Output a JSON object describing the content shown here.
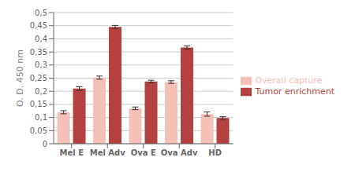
{
  "chart_data": {
    "type": "bar",
    "ylabel": "O. D. 450 nm",
    "categories": [
      "Mel E",
      "Mel Adv",
      "Ova E",
      "Ova Adv",
      "HD"
    ],
    "series": [
      {
        "name": "Overall capture",
        "color": "#f5c0b8",
        "values": [
          0.12,
          0.252,
          0.135,
          0.235,
          0.113
        ],
        "errors": [
          0.006,
          0.006,
          0.005,
          0.005,
          0.008
        ]
      },
      {
        "name": "Tumor enrichment",
        "color": "#b54040",
        "values": [
          0.21,
          0.445,
          0.237,
          0.367,
          0.098
        ],
        "errors": [
          0.007,
          0.006,
          0.005,
          0.006,
          0.005
        ]
      }
    ],
    "ylim": [
      0,
      0.5
    ],
    "yticks": [
      0,
      {
        "value": 0.05,
        "label": "0,05"
      },
      {
        "value": 0.1,
        "label": "0,1"
      },
      {
        "value": 0.15,
        "label": "0,15"
      },
      {
        "value": 0.2,
        "label": "0,2"
      },
      {
        "value": 0.25,
        "label": "0,25"
      },
      {
        "value": 0.3,
        "label": "0,3"
      },
      {
        "value": 0.35,
        "label": "0,35"
      },
      {
        "value": 0.4,
        "label": "0,4"
      },
      {
        "value": 0.45,
        "label": "0,45"
      },
      {
        "value": 0.5,
        "label": "0,5"
      }
    ],
    "grid": true,
    "legend": "right"
  }
}
